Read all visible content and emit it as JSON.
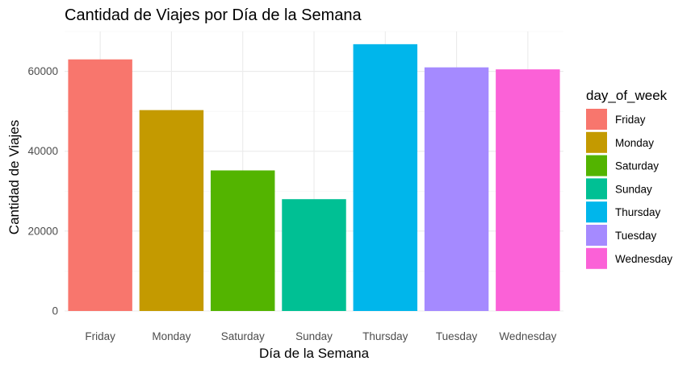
{
  "chart_data": {
    "type": "bar",
    "title": "Cantidad de Viajes por Día de la Semana",
    "xlabel": "Día de la Semana",
    "ylabel": "Cantidad de Viajes",
    "categories": [
      "Friday",
      "Monday",
      "Saturday",
      "Sunday",
      "Thursday",
      "Tuesday",
      "Wednesday"
    ],
    "values": [
      63000,
      50300,
      35200,
      28000,
      66800,
      61000,
      60500
    ],
    "colors": [
      "#F8766D",
      "#C49A00",
      "#53B400",
      "#00C094",
      "#00B6EB",
      "#A58AFF",
      "#FB61D7"
    ],
    "ylim": [
      0,
      70000
    ],
    "yticks": [
      0,
      20000,
      40000,
      60000
    ],
    "ytick_labels": [
      "0",
      "20000",
      "40000",
      "60000"
    ],
    "grid": true,
    "legend": {
      "title": "day_of_week",
      "position": "right",
      "entries": [
        "Friday",
        "Monday",
        "Saturday",
        "Sunday",
        "Thursday",
        "Tuesday",
        "Wednesday"
      ]
    }
  }
}
